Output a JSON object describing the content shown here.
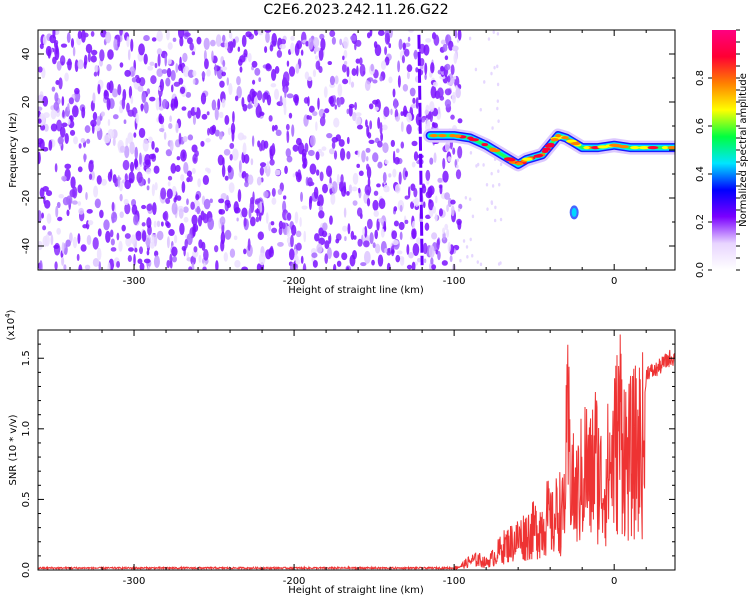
{
  "title": "C2E6.2023.242.11.26.G22",
  "chart_data": [
    {
      "type": "heatmap",
      "title": "C2E6.2023.242.11.26.G22",
      "xlabel": "Height of straight line (km)",
      "ylabel": "Frequency (Hz)",
      "xlim": [
        -360,
        38
      ],
      "ylim": [
        -50,
        50
      ],
      "xticks": [
        -300,
        -200,
        -100,
        0
      ],
      "yticks": [
        -40,
        -20,
        0,
        20,
        40
      ],
      "noise_region_x": [
        -360,
        -100
      ],
      "vertical_streak": {
        "x_top": -122,
        "x_bottom": -120,
        "y_range": [
          -48,
          48
        ]
      },
      "signal_track": [
        {
          "x": -115,
          "y": 6
        },
        {
          "x": -100,
          "y": 6
        },
        {
          "x": -90,
          "y": 5
        },
        {
          "x": -80,
          "y": 2
        },
        {
          "x": -70,
          "y": -2
        },
        {
          "x": -60,
          "y": -6
        },
        {
          "x": -55,
          "y": -4
        },
        {
          "x": -50,
          "y": -3
        },
        {
          "x": -45,
          "y": -2
        },
        {
          "x": -40,
          "y": 2
        },
        {
          "x": -35,
          "y": 6
        },
        {
          "x": -30,
          "y": 5
        },
        {
          "x": -25,
          "y": 3
        },
        {
          "x": -20,
          "y": 1
        },
        {
          "x": -10,
          "y": 1
        },
        {
          "x": 0,
          "y": 2
        },
        {
          "x": 10,
          "y": 1
        },
        {
          "x": 20,
          "y": 1
        },
        {
          "x": 38,
          "y": 1
        }
      ],
      "isolated_blob": {
        "x": -25,
        "y": -26
      },
      "colorbar": {
        "label": "Normalized spectral amplitude",
        "range": [
          0.0,
          1.0
        ],
        "ticks": [
          0.0,
          0.2,
          0.4,
          0.6,
          0.8
        ],
        "tick_labels": [
          "0.0",
          "0.2",
          "0.4",
          "0.6",
          "0.8"
        ],
        "colors": [
          "#ffffff",
          "#e8d4ff",
          "#7a00ff",
          "#0000ff",
          "#00e5ff",
          "#00ff40",
          "#ffff00",
          "#ff8000",
          "#ff0033",
          "#ff0080"
        ]
      }
    },
    {
      "type": "line",
      "xlabel": "Height of straight line (km)",
      "ylabel": "SNR (10 * v/v)",
      "y_scale_label": "(x10",
      "y_scale_exp": "4",
      "xlim": [
        -360,
        38
      ],
      "ylim": [
        0,
        1.7
      ],
      "xticks": [
        -300,
        -200,
        -100,
        0
      ],
      "yticks": [
        0.0,
        0.5,
        1.0,
        1.5
      ],
      "ytick_labels": [
        "0.0",
        "0.5",
        "1.0",
        "1.5"
      ],
      "color": "#ee3333",
      "series": [
        {
          "x": [
            -360,
            -300,
            -200,
            -120,
            -100,
            -95,
            -90,
            -85,
            -80,
            -75,
            -70,
            -65,
            -60,
            -55,
            -50,
            -45,
            -42,
            -38,
            -35,
            -32,
            -29,
            -25,
            -22,
            -18,
            -15,
            -12,
            -10,
            -7,
            -4,
            0,
            4,
            8,
            12,
            16,
            20,
            25,
            30,
            35,
            38
          ],
          "y": [
            0.01,
            0.01,
            0.01,
            0.01,
            0.02,
            0.05,
            0.1,
            0.12,
            0.08,
            0.15,
            0.25,
            0.3,
            0.35,
            0.4,
            0.45,
            0.5,
            0.6,
            0.5,
            0.7,
            0.6,
            1.5,
            0.8,
            0.9,
            1.2,
            1.0,
            1.3,
            1.1,
            0.9,
            1.1,
            1.3,
            1.7,
            1.2,
            1.3,
            1.4,
            1.45,
            1.45,
            1.5,
            1.55,
            1.55
          ]
        }
      ]
    }
  ]
}
